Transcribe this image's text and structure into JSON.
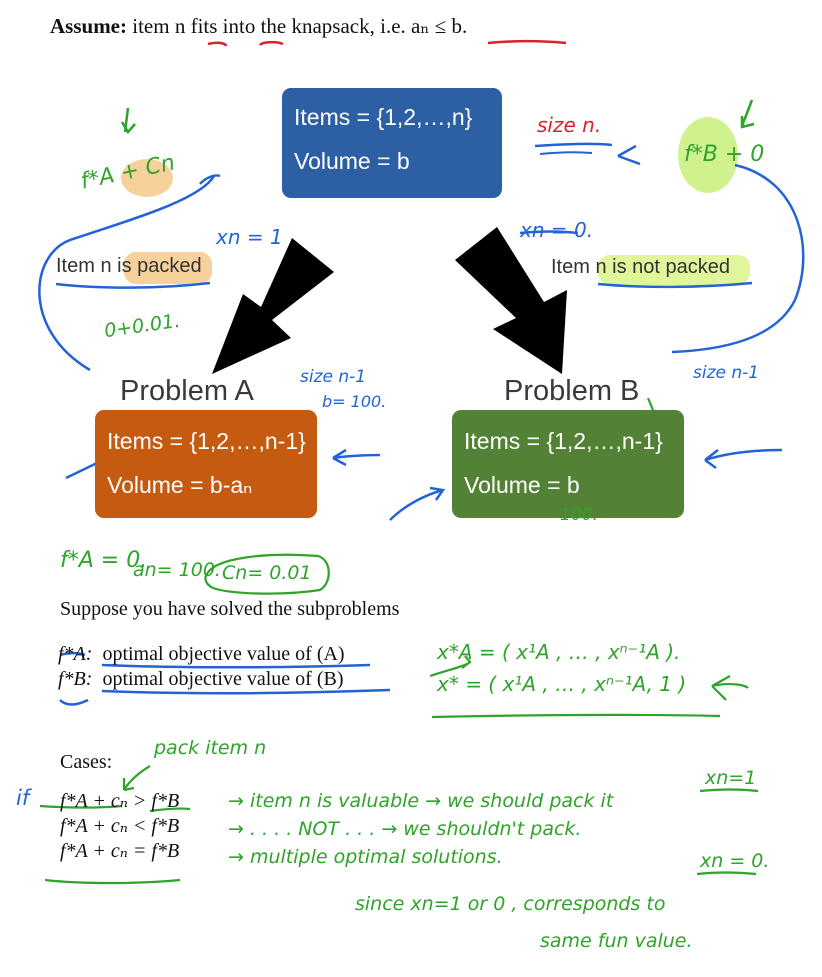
{
  "assume": {
    "bold": "Assume:",
    "text": "item n fits into the knapsack, i.e. aₙ ≤ b."
  },
  "top_box": {
    "line1": "Items = {1,2,…,n}",
    "line2": "Volume = b",
    "color": "#2c5fa3"
  },
  "label_left": "Item n is packed",
  "label_right": "Item n is not packed",
  "problem_a": {
    "title": "Problem A",
    "line1": "Items = {1,2,…,n-1}",
    "line2": "Volume = b-aₙ",
    "color": "#c55a11"
  },
  "problem_b": {
    "title": "Problem B",
    "line1": "Items = {1,2,…,n-1}",
    "line2": "Volume = b",
    "color": "#538135"
  },
  "suppose": "Suppose you have solved the subproblems",
  "defs": [
    {
      "sym": "f*A:",
      "text": "optimal objective value of (A)"
    },
    {
      "sym": "f*B:",
      "text": "optimal objective value of (B)"
    }
  ],
  "cases_label": "Cases:",
  "cases": [
    "f*A + cₙ > f*B",
    "f*A + cₙ < f*B",
    "f*A + cₙ = f*B"
  ],
  "notes": {
    "fa_cn": "f*A + Cn",
    "fb_0": "f*B + 0",
    "size_n": "size n.",
    "xn1": "xn = 1",
    "xn0": "xn = 0.",
    "tiny": "0+0.01.",
    "size_n1_a": "size n-1",
    "b100": "b= 100.",
    "size_n1_b": "size n-1",
    "fa0": "f*A = 0.",
    "an100": "an= 100.",
    "cn001": "Cn= 0.01",
    "hundred": "100.",
    "xa_star": "x*A = ( x¹A , … , xⁿ⁻¹A ).",
    "x_star": "x* = ( x¹A , … , xⁿ⁻¹A, 1 )",
    "pack_item": "pack item n",
    "xn1_right": "xn=1",
    "if": "if",
    "case1_note": "→ item n is valuable → we should pack it",
    "case2_note": "→ . . . . NOT . . . → we shouldn't pack.",
    "case3_note": "→ multiple optimal solutions.",
    "xn0_right": "xn = 0.",
    "since1": "since xn=1 or 0 , corresponds to",
    "since2": "same fun value."
  }
}
